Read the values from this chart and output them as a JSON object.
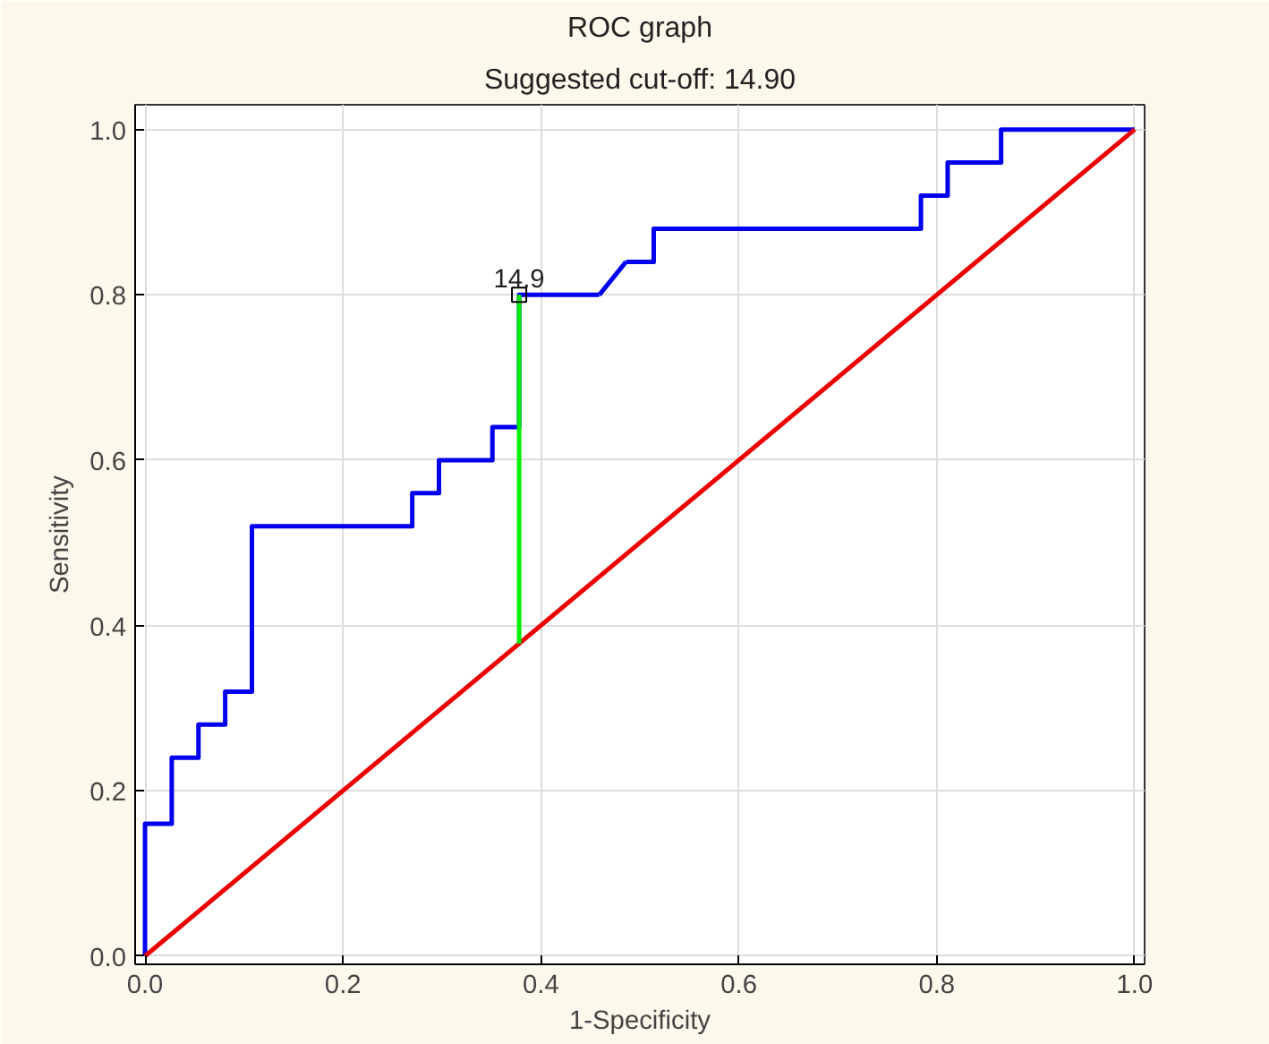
{
  "chart_data": {
    "type": "line",
    "title": "ROC graph",
    "subtitle": "Suggested cut-off: 14.90",
    "xlabel": "1-Specificity",
    "ylabel": "Sensitivity",
    "xlim": [
      -0.01,
      1.01
    ],
    "ylim": [
      -0.01,
      1.03
    ],
    "xticks": [
      {
        "value": 0,
        "label": "0.0"
      },
      0.2,
      0.4,
      0.6,
      0.8,
      {
        "value": 1,
        "label": "1.0"
      }
    ],
    "yticks": [
      {
        "value": 0,
        "label": "0.0"
      },
      0.2,
      0.4,
      0.6,
      0.8,
      {
        "value": 1,
        "label": "1.0"
      }
    ],
    "grid": true,
    "series": [
      {
        "type": "step",
        "color": "#0000ee",
        "marker": "none",
        "x": [
          0,
          0,
          0.027,
          0.054,
          0.081,
          0.108,
          0.27,
          0.297,
          0.351,
          0.378,
          0.459
        ],
        "values": [
          0,
          0.16,
          0.24,
          0.28,
          0.32,
          0.52,
          0.56,
          0.6,
          0.64,
          0.8,
          0.8
        ]
      },
      {
        "type": "step",
        "color": "#0000ee",
        "marker": "none",
        "x": [
          0.486,
          0.514,
          0.784,
          0.811,
          0.865,
          1.0
        ],
        "values": [
          0.84,
          0.88,
          0.92,
          0.96,
          1.0,
          1.0
        ]
      },
      {
        "color": "#0000ee",
        "marker": "none",
        "x": [
          0.459,
          0.486
        ],
        "values": [
          0.8,
          0.84
        ]
      },
      {
        "color": "#ee0000",
        "marker": "none",
        "x": [
          0,
          1
        ],
        "values": [
          0,
          1
        ]
      },
      {
        "color": "#00ee00",
        "marker": "none",
        "x": [
          0.378,
          0.378
        ],
        "values": [
          0.378,
          0.8
        ]
      },
      {
        "type": "scatter",
        "color": "#000000",
        "marker": "square",
        "x": [
          0.378
        ],
        "values": [
          0.8
        ]
      }
    ],
    "annotations": [
      {
        "text": "14.9",
        "x": 0.378,
        "y": 0.8
      }
    ]
  }
}
